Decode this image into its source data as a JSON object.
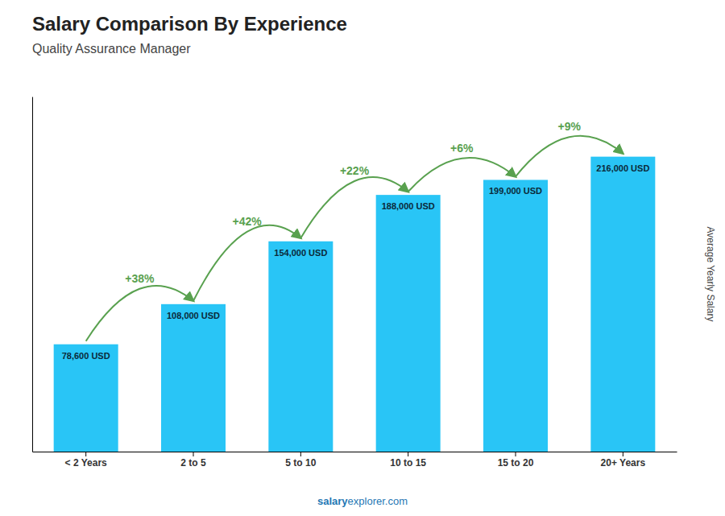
{
  "chart_data": {
    "type": "bar",
    "title": "Salary Comparison By Experience",
    "subtitle": "Quality Assurance Manager",
    "ylabel": "Average Yearly Salary",
    "footer": [
      "salary",
      "explorer.com"
    ],
    "categories": [
      "< 2 Years",
      "2 to 5",
      "5 to 10",
      "10 to 15",
      "15 to 20",
      "20+ Years"
    ],
    "values": [
      78600,
      108000,
      154000,
      188000,
      199000,
      216000
    ],
    "value_labels": [
      "78,600 USD",
      "108,000 USD",
      "154,000 USD",
      "188,000 USD",
      "199,000 USD",
      "216,000 USD"
    ],
    "data_labels": true,
    "annotations": [
      "+38%",
      "+42%",
      "+22%",
      "+6%",
      "+9%"
    ],
    "color": "#29c5f6",
    "ylim": [
      0,
      260000
    ],
    "tick_labels": "x"
  }
}
